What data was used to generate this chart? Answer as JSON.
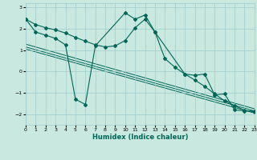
{
  "xlabel": "Humidex (Indice chaleur)",
  "bg_color": "#c8e8e0",
  "grid_color": "#a0cccc",
  "line_color": "#006655",
  "xlim": [
    0,
    23
  ],
  "ylim": [
    -2.5,
    3.2
  ],
  "xticks": [
    0,
    1,
    2,
    3,
    4,
    5,
    6,
    7,
    8,
    9,
    10,
    11,
    12,
    13,
    14,
    15,
    16,
    17,
    18,
    19,
    20,
    21,
    22,
    23
  ],
  "yticks": [
    -2,
    -1,
    0,
    1,
    2,
    3
  ],
  "jagged_x": [
    0,
    1,
    2,
    3,
    4,
    5,
    6,
    7,
    10,
    11,
    12,
    13,
    16,
    17,
    18,
    19,
    20,
    21,
    22,
    23
  ],
  "jagged_y": [
    2.45,
    1.85,
    1.7,
    1.55,
    1.25,
    -1.3,
    -1.55,
    1.2,
    2.75,
    2.45,
    2.65,
    1.85,
    -0.12,
    -0.18,
    -0.12,
    -1.1,
    -1.05,
    -1.8,
    -1.85,
    -1.85
  ],
  "smooth_x": [
    0,
    1,
    2,
    3,
    4,
    5,
    6,
    7,
    8,
    9,
    10,
    11,
    12,
    13,
    14,
    15,
    16,
    17,
    18,
    19,
    20,
    21,
    22,
    23
  ],
  "smooth_y": [
    2.45,
    2.2,
    2.05,
    1.95,
    1.8,
    1.6,
    1.42,
    1.25,
    1.15,
    1.2,
    1.45,
    2.05,
    2.45,
    1.85,
    0.6,
    0.2,
    -0.12,
    -0.4,
    -0.7,
    -1.05,
    -1.38,
    -1.6,
    -1.82,
    -1.9
  ],
  "reg_lines": [
    {
      "x": [
        0,
        23
      ],
      "y": [
        1.28,
        -1.75
      ]
    },
    {
      "x": [
        0,
        23
      ],
      "y": [
        1.15,
        -1.85
      ]
    },
    {
      "x": [
        0,
        23
      ],
      "y": [
        1.05,
        -1.95
      ]
    }
  ]
}
